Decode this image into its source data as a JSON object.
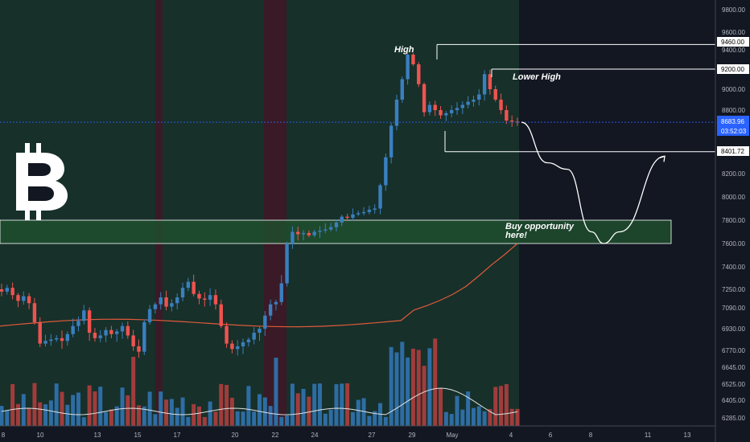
{
  "colors": {
    "background": "#131722",
    "session_green": "#17302a",
    "session_red": "#3a1a26",
    "candle_up": "#26a69a",
    "candle_up_shadow": "#3a7fbf",
    "candle_down": "#ef5350",
    "volume_up": "#2e6da4",
    "volume_down": "#a13c3c",
    "ma_line": "#e05a3a",
    "volume_ma": "#e0e0e0",
    "buy_zone_fill": "#1f4d2e",
    "current_price_bg": "#2962ff",
    "text": "#b2b5be"
  },
  "chart_data": {
    "type": "candlestick",
    "title": "",
    "xlabel": "",
    "ylabel": "",
    "symbol_icon": "bitcoin-icon",
    "price_axis": {
      "ticks": [
        "9800.00",
        "9600.00",
        "9400.00",
        "9200.00",
        "9000.00",
        "8800.00",
        "8600.00",
        "8400.00",
        "8200.00",
        "8000.00",
        "7800.00",
        "7600.00",
        "7400.00",
        "7250.00",
        "7090.00",
        "6930.00",
        "6770.00",
        "6645.00",
        "6525.00",
        "6405.00",
        "6285.00"
      ]
    },
    "date_axis": {
      "ticks": [
        "8",
        "10",
        "13",
        "15",
        "17",
        "20",
        "22",
        "24",
        "27",
        "29",
        "May",
        "4",
        "6",
        "8",
        "11",
        "13"
      ]
    },
    "price_tags": {
      "high_level": "9460.00",
      "lower_high_level": "9200.00",
      "current_price": "8683.96",
      "countdown": "03:52:03",
      "support_level": "8401.72"
    },
    "annotations": {
      "high": "High",
      "lower_high": "Lower High",
      "buy_line1": "Buy opportunity",
      "buy_line2": "here!"
    },
    "buy_zone": [
      7600,
      7800
    ],
    "close_path": [
      7230,
      7260,
      7200,
      7150,
      7190,
      7130,
      6980,
      6820,
      6840,
      6850,
      6860,
      6840,
      6890,
      6950,
      6990,
      7070,
      6900,
      6860,
      6880,
      6920,
      6890,
      6910,
      6950,
      6880,
      6800,
      6760,
      6980,
      7080,
      7120,
      7180,
      7100,
      7130,
      7180,
      7260,
      7300,
      7210,
      7170,
      7160,
      7200,
      7120,
      6950,
      6820,
      6780,
      6800,
      6830,
      6850,
      6900,
      6930,
      7030,
      7120,
      7140,
      7290,
      7600,
      7700,
      7680,
      7690,
      7670,
      7700,
      7710,
      7720,
      7740,
      7780,
      7830,
      7820,
      7850,
      7860,
      7870,
      7890,
      7900,
      8100,
      8350,
      8650,
      8900,
      9100,
      9350,
      9250,
      9050,
      8780,
      8850,
      8800,
      8750,
      8770,
      8800,
      8820,
      8850,
      8880,
      8900,
      8950,
      9150,
      9000,
      8900,
      8800,
      8700,
      8690,
      8683
    ],
    "projection": [
      [
        0,
        8683
      ],
      [
        5,
        8300
      ],
      [
        10,
        8240
      ],
      [
        15,
        7700
      ],
      [
        20,
        7600
      ],
      [
        26,
        7700
      ],
      [
        33,
        8360
      ]
    ],
    "ma_start": 6950,
    "ma_end": 7600,
    "volume_ma_level": 0.18
  }
}
